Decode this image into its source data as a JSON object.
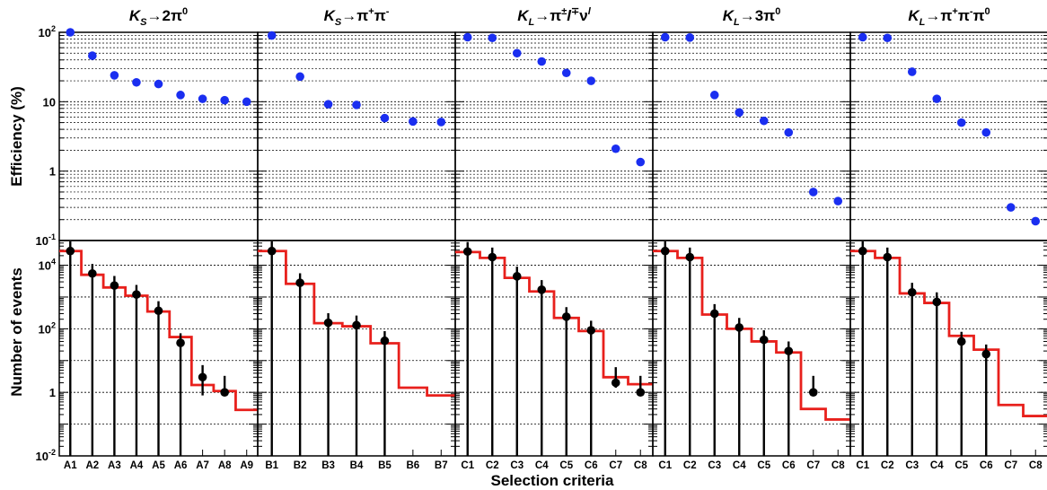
{
  "figure": {
    "xlabel": "Selection criteria",
    "top_ylabel": "Efficiency (%)",
    "bottom_ylabel": "Number of events",
    "top_yticks": [
      {
        "v": 0.1,
        "base": "10",
        "exp": "-1"
      },
      {
        "v": 1,
        "label": "1"
      },
      {
        "v": 10,
        "label": "10"
      },
      {
        "v": 100,
        "base": "10",
        "exp": "2"
      }
    ],
    "bottom_yticks": [
      {
        "v": 0.01,
        "base": "10",
        "exp": "-2"
      },
      {
        "v": 1,
        "label": "1"
      },
      {
        "v": 100,
        "base": "10",
        "exp": "2"
      },
      {
        "v": 10000,
        "base": "10",
        "exp": "4"
      }
    ],
    "colors": {
      "efficiency_marker": "#1a2ef0",
      "data_marker": "#000000",
      "mc_histogram": "#e8201c",
      "grid": "#000000"
    }
  },
  "chart_data": [
    {
      "type": "scatter",
      "title_parts": [
        {
          "t": "K",
          "it": true
        },
        {
          "t": "S",
          "it": true,
          "sub": true
        },
        {
          "t": "→2π"
        },
        {
          "t": "0",
          "sup": true
        }
      ],
      "categories": [
        "A1",
        "A2",
        "A3",
        "A4",
        "A5",
        "A6",
        "A7",
        "A8",
        "A9"
      ],
      "efficiency": [
        100,
        46,
        24,
        19,
        18,
        12.5,
        11,
        10.5,
        10
      ],
      "events_data": [
        28000,
        5500,
        2300,
        1200,
        370,
        36,
        3,
        1,
        null
      ],
      "events_data_err": [
        [
          28000,
          28000
        ],
        [
          5500,
          5500
        ],
        [
          2300,
          2300
        ],
        [
          1200,
          1200
        ],
        [
          370,
          370
        ],
        [
          36,
          36
        ],
        [
          2.2,
          4.2
        ],
        [
          0.01,
          2.3
        ],
        null
      ],
      "events_mc": [
        28000,
        5000,
        2000,
        1100,
        350,
        55,
        1.7,
        1.1,
        0.28
      ],
      "ylim_top": [
        0.1,
        100
      ],
      "ylim_bottom": [
        0.01,
        60000
      ],
      "yscale": "log",
      "grid": true
    },
    {
      "type": "scatter",
      "title_parts": [
        {
          "t": "K",
          "it": true
        },
        {
          "t": "S",
          "it": true,
          "sub": true
        },
        {
          "t": "→π"
        },
        {
          "t": "+",
          "sup": true
        },
        {
          "t": "π"
        },
        {
          "t": "-",
          "sup": true
        }
      ],
      "categories": [
        "B1",
        "B2",
        "B3",
        "B4",
        "B5",
        "B6",
        "B7"
      ],
      "efficiency": [
        90,
        23,
        9.2,
        9,
        5.8,
        5.2,
        5.1
      ],
      "events_data": [
        28000,
        2800,
        155,
        130,
        42,
        null,
        null
      ],
      "events_data_err": [
        [
          28000,
          28000
        ],
        [
          2800,
          2800
        ],
        [
          155,
          155
        ],
        [
          130,
          130
        ],
        [
          42,
          42
        ],
        null,
        null
      ],
      "events_mc": [
        28000,
        2600,
        150,
        120,
        35,
        1.4,
        0.8
      ],
      "ylim_top": [
        0.1,
        100
      ],
      "ylim_bottom": [
        0.01,
        60000
      ],
      "yscale": "log",
      "grid": true
    },
    {
      "type": "scatter",
      "title_parts": [
        {
          "t": "K",
          "it": true
        },
        {
          "t": "L",
          "it": true,
          "sub": true
        },
        {
          "t": "→π"
        },
        {
          "t": "±",
          "sup": true
        },
        {
          "t": "l",
          "it": true
        },
        {
          "t": "∓",
          "sup": true
        },
        {
          "t": "ν"
        },
        {
          "t": "l",
          "it": true,
          "sup": true
        }
      ],
      "categories": [
        "C1",
        "C2",
        "C3",
        "C4",
        "C5",
        "C6",
        "C7",
        "C8"
      ],
      "efficiency": [
        85,
        83,
        50,
        38,
        26,
        20,
        2.1,
        1.35
      ],
      "events_data": [
        27000,
        18000,
        4500,
        1700,
        240,
        90,
        2,
        1
      ],
      "events_data_err": [
        [
          27000,
          27000
        ],
        [
          18000,
          18000
        ],
        [
          4500,
          4500
        ],
        [
          1700,
          1700
        ],
        [
          240,
          240
        ],
        [
          90,
          90
        ],
        [
          0.6,
          4.2
        ],
        [
          0.01,
          2.3
        ]
      ],
      "events_mc": [
        26000,
        17000,
        4000,
        1500,
        220,
        85,
        3,
        1.8
      ],
      "ylim_top": [
        0.1,
        100
      ],
      "ylim_bottom": [
        0.01,
        60000
      ],
      "yscale": "log",
      "grid": true
    },
    {
      "type": "scatter",
      "title_parts": [
        {
          "t": "K",
          "it": true
        },
        {
          "t": "L",
          "it": true,
          "sub": true
        },
        {
          "t": "→3π"
        },
        {
          "t": "0",
          "sup": true
        }
      ],
      "categories": [
        "C1",
        "C2",
        "C3",
        "C4",
        "C5",
        "C6",
        "C7",
        "C8"
      ],
      "efficiency": [
        85,
        84,
        12.5,
        7,
        5.3,
        3.6,
        0.5,
        0.37
      ],
      "events_data": [
        28000,
        18000,
        300,
        110,
        45,
        20,
        1,
        null
      ],
      "events_data_err": [
        [
          28000,
          28000
        ],
        [
          18000,
          18000
        ],
        [
          300,
          300
        ],
        [
          110,
          110
        ],
        [
          45,
          45
        ],
        [
          20,
          20
        ],
        [
          0.01,
          2.3
        ],
        null
      ],
      "events_mc": [
        28000,
        17000,
        280,
        100,
        40,
        18,
        0.3,
        0.14
      ],
      "ylim_top": [
        0.1,
        100
      ],
      "ylim_bottom": [
        0.01,
        60000
      ],
      "yscale": "log",
      "grid": true
    },
    {
      "type": "scatter",
      "title_parts": [
        {
          "t": "K",
          "it": true
        },
        {
          "t": "L",
          "it": true,
          "sub": true
        },
        {
          "t": "→π"
        },
        {
          "t": "+",
          "sup": true
        },
        {
          "t": "π"
        },
        {
          "t": "-",
          "sup": true
        },
        {
          "t": "π"
        },
        {
          "t": "0",
          "sup": true
        }
      ],
      "categories": [
        "C1",
        "C2",
        "C3",
        "C4",
        "C5",
        "C6",
        "C7",
        "C8"
      ],
      "efficiency": [
        85,
        83,
        27,
        11,
        5,
        3.6,
        0.3,
        0.19
      ],
      "events_data": [
        28000,
        18000,
        1400,
        700,
        40,
        16,
        null,
        null
      ],
      "events_data_err": [
        [
          28000,
          28000
        ],
        [
          18000,
          18000
        ],
        [
          1400,
          1400
        ],
        [
          700,
          700
        ],
        [
          40,
          40
        ],
        [
          16,
          16
        ],
        null,
        null
      ],
      "events_mc": [
        28000,
        17000,
        1300,
        650,
        60,
        22,
        0.4,
        0.18
      ],
      "ylim_top": [
        0.1,
        100
      ],
      "ylim_bottom": [
        0.01,
        60000
      ],
      "yscale": "log",
      "grid": true
    }
  ]
}
